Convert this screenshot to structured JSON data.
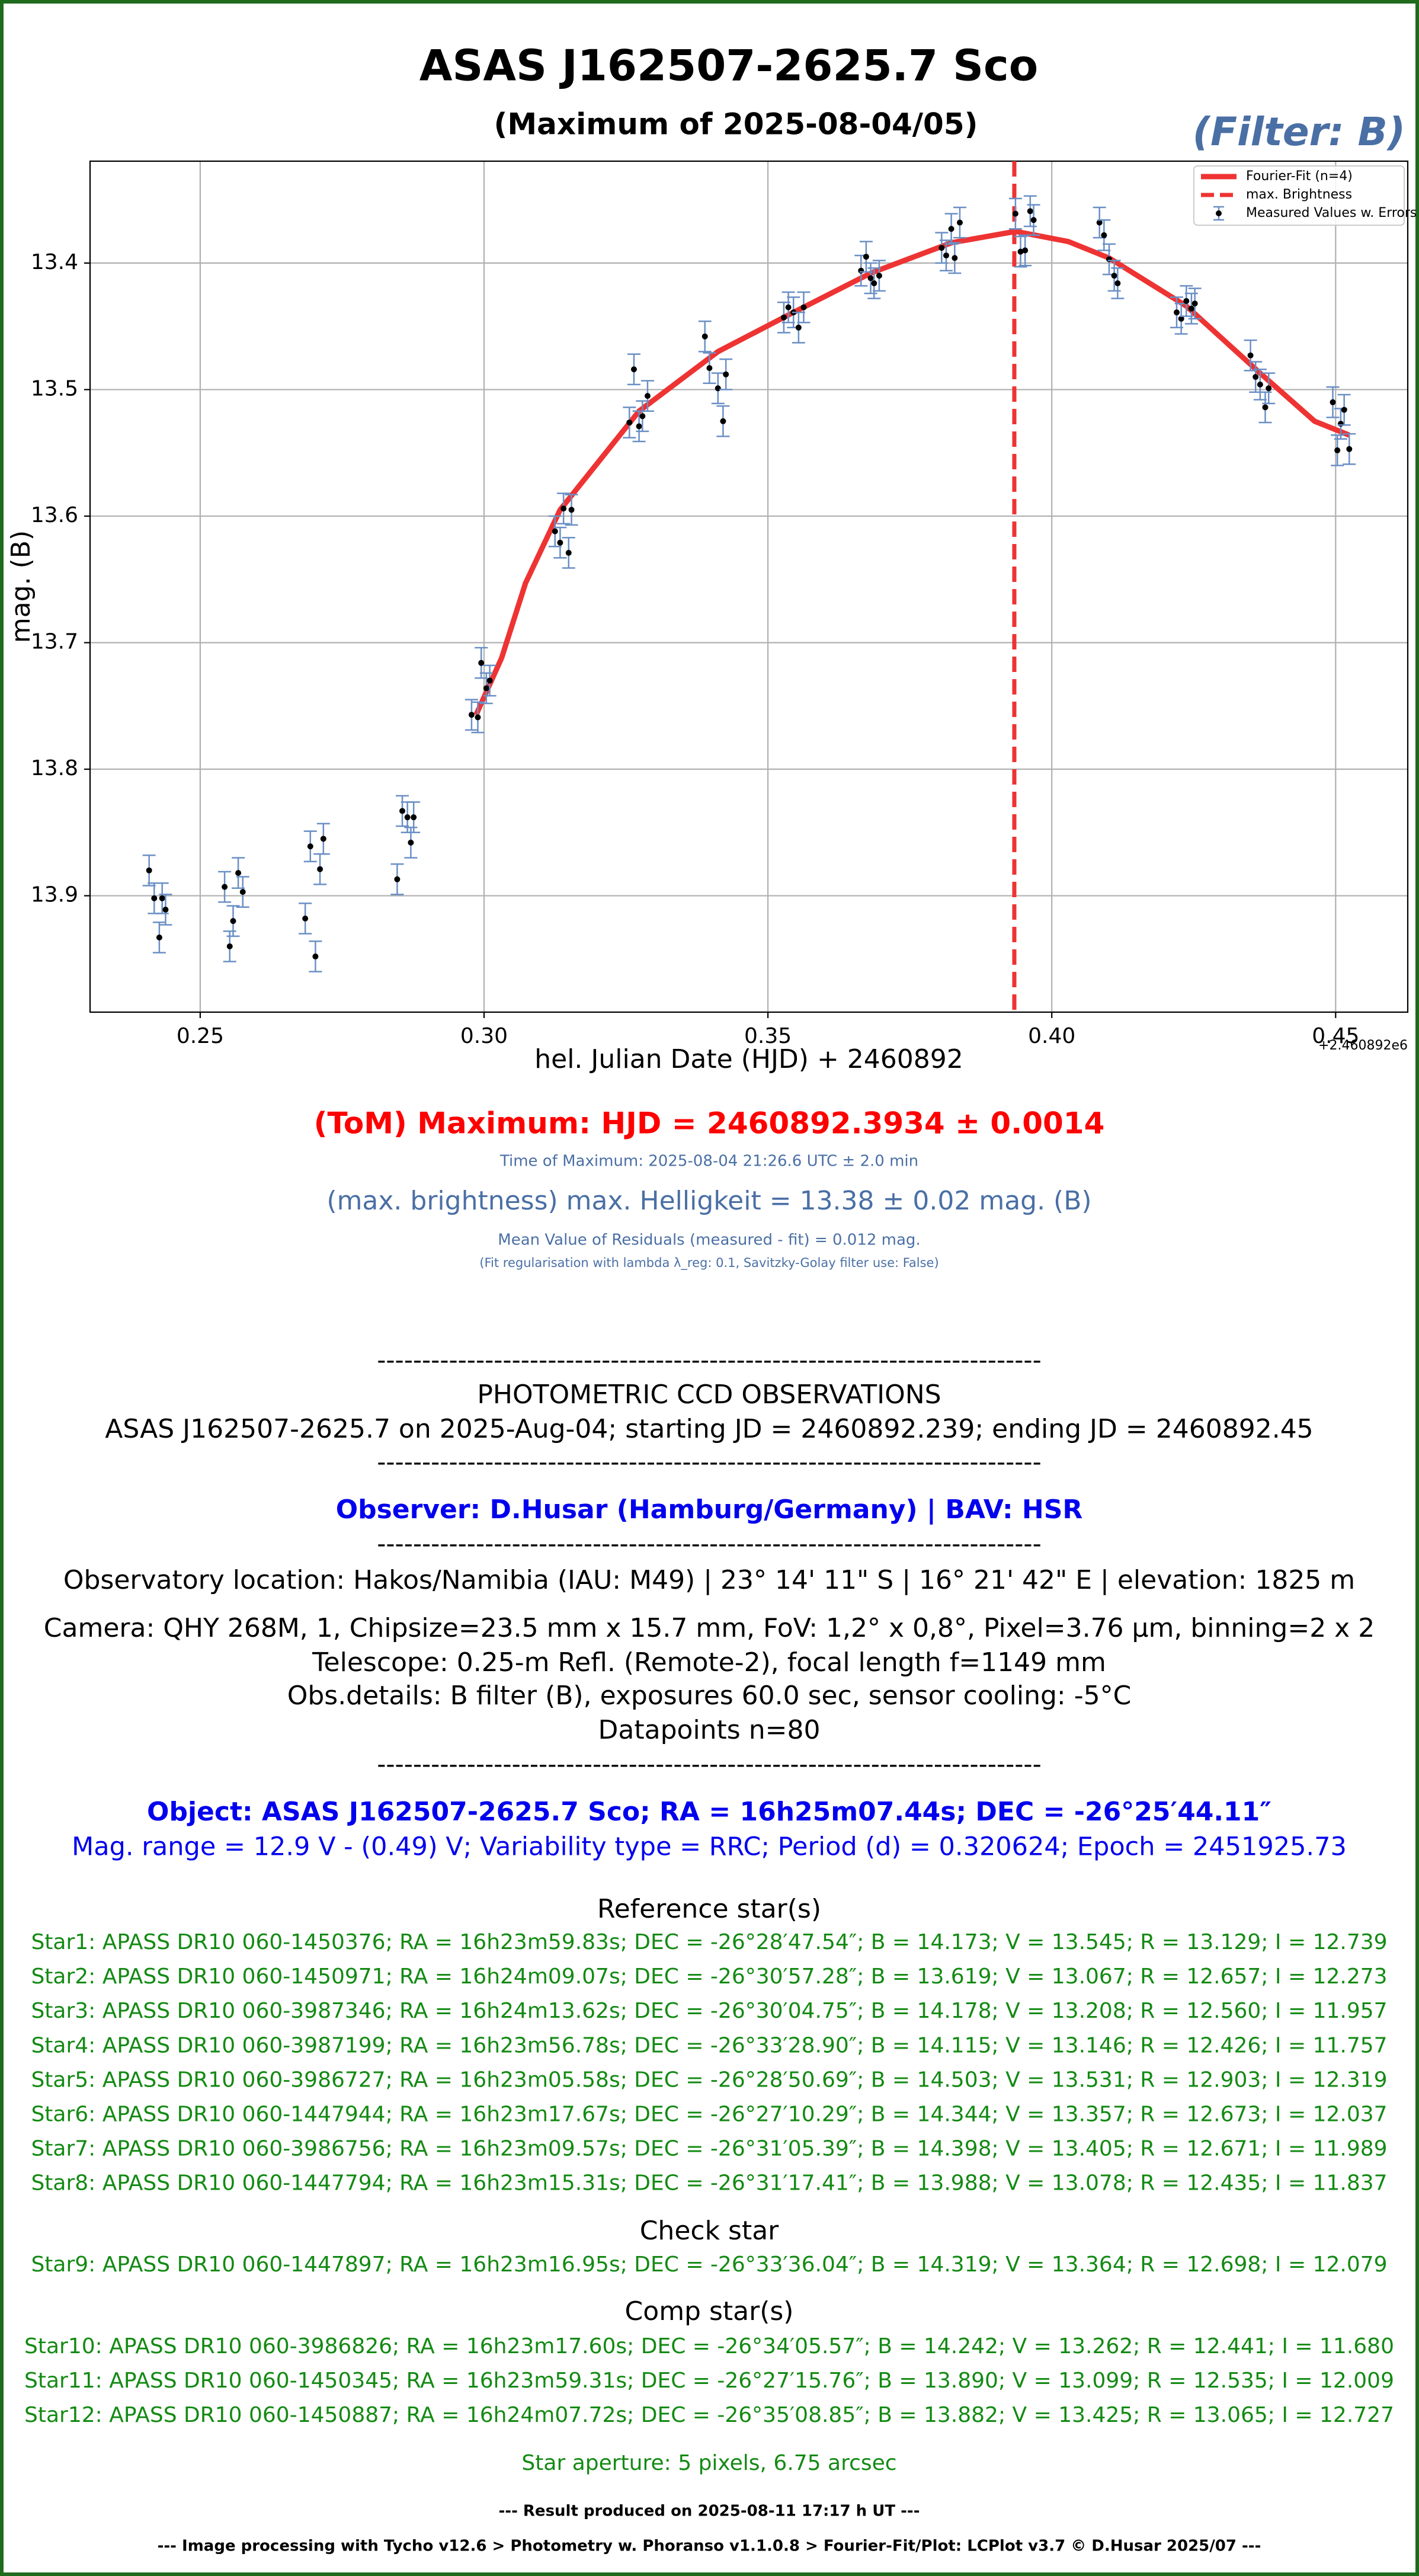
{
  "chart_data": {
    "type": "scatter",
    "title": "ASAS J162507-2625.7 Sco",
    "subtitle": "(Maximum of 2025-08-04/05)",
    "filter_label": "(Filter: B)",
    "xlabel": "hel. Julian Date (HJD) + 2460892",
    "ylabel": "mag. (B)",
    "x_offset_label": "+2.460892e6",
    "xlim": [
      0.2306,
      0.4627
    ],
    "ylim": [
      13.992,
      13.3195
    ],
    "xticks": [
      0.25,
      {
        "value": 0.3,
        "label": "0.30"
      },
      0.35,
      {
        "value": 0.4,
        "label": "0.40"
      },
      0.45
    ],
    "yticks": [
      13.4,
      13.5,
      13.6,
      13.7,
      13.8,
      13.9
    ],
    "grid": true,
    "legend": "upper right",
    "series": [
      {
        "name": "Fourier-Fit (n=4)",
        "type": "line",
        "color": "#ee3333",
        "x": [
          0.2986,
          0.3031,
          0.3073,
          0.3134,
          0.3273,
          0.3412,
          0.3545,
          0.3681,
          0.3823,
          0.3936,
          0.4029,
          0.4101,
          0.4237,
          0.4367,
          0.4463,
          0.4524
        ],
        "values": [
          13.757,
          13.712,
          13.653,
          13.595,
          13.517,
          13.47,
          13.439,
          13.408,
          13.384,
          13.375,
          13.383,
          13.396,
          13.434,
          13.487,
          13.525,
          13.536
        ]
      },
      {
        "name": "max. Brightness",
        "type": "vline",
        "color": "#ee3333",
        "x": 0.3934
      },
      {
        "name": "Measured Values w. Errors",
        "type": "errorbar",
        "color": "#000000",
        "error_color": "#6a8fc5",
        "x": [
          0.241,
          0.2419,
          0.2428,
          0.2433,
          0.2439,
          0.2543,
          0.2552,
          0.2558,
          0.2567,
          0.2575,
          0.2685,
          0.2694,
          0.2703,
          0.2711,
          0.2717,
          0.2847,
          0.2856,
          0.2865,
          0.2871,
          0.2876,
          0.2978,
          0.2989,
          0.2995,
          0.3004,
          0.301,
          0.3125,
          0.3134,
          0.314,
          0.3149,
          0.3154,
          0.3256,
          0.3264,
          0.3273,
          0.3279,
          0.3288,
          0.3389,
          0.3397,
          0.3412,
          0.3421,
          0.3426,
          0.3528,
          0.3536,
          0.3545,
          0.3554,
          0.3563,
          0.3664,
          0.3673,
          0.3681,
          0.3687,
          0.3696,
          0.3806,
          0.3814,
          0.3823,
          0.3829,
          0.3838,
          0.3936,
          0.3945,
          0.3953,
          0.3962,
          0.3968,
          0.4084,
          0.4092,
          0.4101,
          0.411,
          0.4116,
          0.422,
          0.4228,
          0.4237,
          0.4246,
          0.4252,
          0.435,
          0.4359,
          0.4367,
          0.4376,
          0.4382,
          0.4495,
          0.4503,
          0.4509,
          0.4515,
          0.4524
        ],
        "values": [
          13.88,
          13.902,
          13.933,
          13.902,
          13.911,
          13.893,
          13.94,
          13.92,
          13.882,
          13.897,
          13.918,
          13.861,
          13.948,
          13.879,
          13.855,
          13.887,
          13.833,
          13.838,
          13.858,
          13.838,
          13.757,
          13.759,
          13.716,
          13.736,
          13.73,
          13.612,
          13.621,
          13.594,
          13.629,
          13.595,
          13.526,
          13.484,
          13.529,
          13.521,
          13.505,
          13.458,
          13.483,
          13.499,
          13.525,
          13.488,
          13.443,
          13.435,
          13.439,
          13.451,
          13.435,
          13.406,
          13.395,
          13.412,
          13.416,
          13.41,
          13.388,
          13.394,
          13.373,
          13.396,
          13.368,
          13.361,
          13.391,
          13.39,
          13.359,
          13.366,
          13.368,
          13.378,
          13.397,
          13.41,
          13.416,
          13.439,
          13.444,
          13.43,
          13.436,
          13.432,
          13.473,
          13.49,
          13.496,
          13.514,
          13.499,
          13.51,
          13.548,
          13.527,
          13.516,
          13.547
        ],
        "errors": [
          0.012,
          0.012,
          0.012,
          0.012,
          0.012,
          0.012,
          0.012,
          0.012,
          0.012,
          0.012,
          0.012,
          0.012,
          0.012,
          0.012,
          0.012,
          0.012,
          0.012,
          0.012,
          0.012,
          0.012,
          0.012,
          0.012,
          0.012,
          0.012,
          0.012,
          0.012,
          0.012,
          0.012,
          0.012,
          0.012,
          0.012,
          0.012,
          0.012,
          0.012,
          0.012,
          0.012,
          0.012,
          0.012,
          0.012,
          0.012,
          0.012,
          0.012,
          0.012,
          0.012,
          0.012,
          0.012,
          0.012,
          0.012,
          0.012,
          0.012,
          0.012,
          0.012,
          0.012,
          0.012,
          0.012,
          0.012,
          0.012,
          0.012,
          0.012,
          0.012,
          0.012,
          0.012,
          0.012,
          0.012,
          0.012,
          0.012,
          0.012,
          0.012,
          0.012,
          0.012,
          0.012,
          0.012,
          0.012,
          0.012,
          0.012,
          0.012,
          0.012,
          0.012,
          0.012,
          0.012
        ]
      }
    ]
  },
  "report": {
    "tom": "(ToM) Maximum: HJD = 2460892.3934 ± 0.0014",
    "time_of_max": "Time of Maximum:   2025-08-04   21:26.6 UTC ± 2.0 min",
    "max_brightness": "(max. brightness) max. Helligkeit = 13.38 ± 0.02 mag. (B)",
    "residuals": "Mean Value of Residuals (measured - fit) = 0.012 mag.",
    "fit_note": "(Fit regularisation with lambda λ_reg: 0.1, Savitzky-Golay filter use: False)",
    "separator": "--------------------------------------------------------------------------",
    "heading": "PHOTOMETRIC CCD OBSERVATIONS",
    "obs_line": "ASAS J162507-2625.7 on 2025-Aug-04; starting JD = 2460892.239; ending JD = 2460892.45",
    "observer": "Observer: D.Husar (Hamburg/Germany) | BAV: HSR",
    "location": "Observatory location: Hakos/Namibia (IAU: M49) | 23° 14' 11\" S | 16° 21' 42\" E | elevation: 1825 m",
    "camera": "Camera: QHY 268M, 1, Chipsize=23.5 mm x 15.7 mm, FoV: 1,2° x 0,8°, Pixel=3.76 µm, binning=2 x 2",
    "telescope": "Telescope: 0.25-m Refl. (Remote-2), focal length f=1149 mm",
    "obs_details": "Obs.details: B filter (B), exposures 60.0 sec, sensor cooling: -5°C",
    "datapoints": "Datapoints n=80",
    "object": "Object: ASAS J162507-2625.7 Sco; RA = 16h25m07.44s; DEC = -26°25′44.11″",
    "mag_range": "Mag. range = 12.9 V - (0.49) V; Variability type = RRC; Period (d) = 0.320624; Epoch = 2451925.73",
    "ref_heading": "Reference star(s)",
    "ref_stars": [
      "Star1: APASS DR10 060-1450376; RA = 16h23m59.83s; DEC = -26°28′47.54″; B = 14.173; V = 13.545; R = 13.129; I = 12.739",
      "Star2: APASS DR10 060-1450971; RA = 16h24m09.07s; DEC = -26°30′57.28″; B = 13.619; V = 13.067; R = 12.657; I = 12.273",
      "Star3: APASS DR10 060-3987346; RA = 16h24m13.62s; DEC = -26°30′04.75″; B = 14.178; V = 13.208; R = 12.560; I = 11.957",
      "Star4: APASS DR10 060-3987199; RA = 16h23m56.78s; DEC = -26°33′28.90″; B = 14.115; V = 13.146; R = 12.426; I = 11.757",
      "Star5: APASS DR10 060-3986727; RA = 16h23m05.58s; DEC = -26°28′50.69″; B = 14.503; V = 13.531; R = 12.903; I = 12.319",
      "Star6: APASS DR10 060-1447944; RA = 16h23m17.67s; DEC = -26°27′10.29″; B = 14.344; V = 13.357; R = 12.673; I = 12.037",
      "Star7: APASS DR10 060-3986756; RA = 16h23m09.57s; DEC = -26°31′05.39″; B = 14.398; V = 13.405; R = 12.671; I = 11.989",
      "Star8: APASS DR10 060-1447794; RA = 16h23m15.31s; DEC = -26°31′17.41″; B = 13.988; V = 13.078; R = 12.435; I = 11.837"
    ],
    "check_heading": "Check star",
    "check_stars": [
      "Star9: APASS DR10 060-1447897; RA = 16h23m16.95s; DEC = -26°33′36.04″; B = 14.319; V = 13.364; R = 12.698; I = 12.079"
    ],
    "comp_heading": "Comp star(s)",
    "comp_stars": [
      "Star10: APASS DR10 060-3986826; RA = 16h23m17.60s; DEC = -26°34′05.57″; B = 14.242; V = 13.262; R = 12.441; I = 11.680",
      "Star11: APASS DR10 060-1450345; RA = 16h23m59.31s; DEC = -26°27′15.76″; B = 13.890; V = 13.099; R = 12.535; I = 12.009",
      "Star12: APASS DR10 060-1450887; RA = 16h24m07.72s; DEC = -26°35′08.85″; B = 13.882; V = 13.425; R = 13.065; I = 12.727"
    ],
    "aperture": "Star aperture: 5 pixels, 6.75 arcsec",
    "result": "--- Result produced on 2025-08-11 17:17 h UT ---",
    "footer": "--- Image processing with Tycho v12.6 > Photometry w. Phoranso v1.1.0.8 > Fourier-Fit/Plot: LCPlot v3.7 © D.Husar 2025/07 ---"
  }
}
